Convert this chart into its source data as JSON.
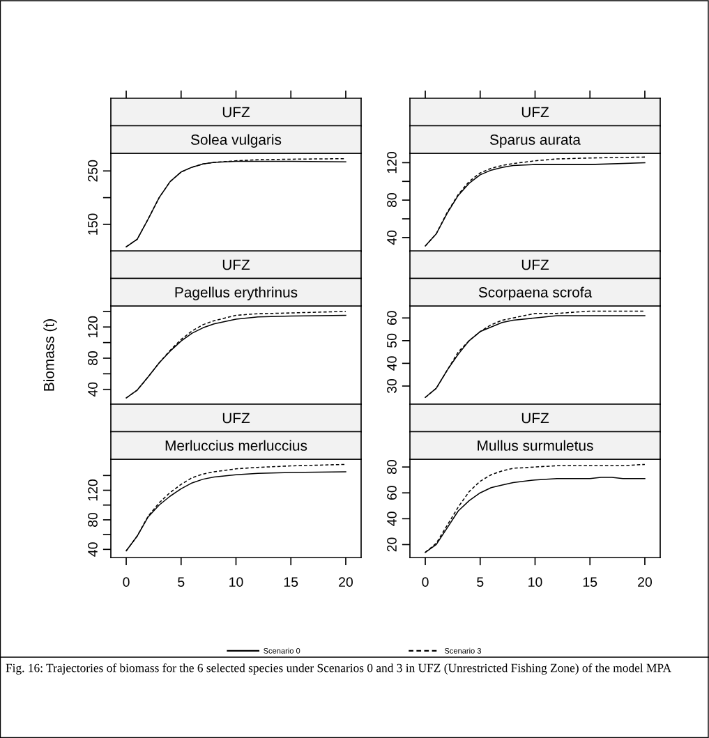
{
  "chart_data": [
    {
      "type": "line",
      "title": "UFZ",
      "subtitle": "Solea vulgaris",
      "x": [
        0,
        1,
        2,
        3,
        4,
        5,
        6,
        7,
        8,
        10,
        12,
        15,
        20
      ],
      "xlim": [
        -1.4,
        21.4
      ],
      "xticks": [
        0,
        5,
        10,
        15,
        20
      ],
      "ylim": [
        99,
        283
      ],
      "yticks": [
        150,
        {
          "value": 200,
          "label": null
        },
        250
      ],
      "tick_labels": "y",
      "series": [
        {
          "color": "#000000",
          "line_style": "solid",
          "values": [
            108,
            122,
            160,
            200,
            230,
            248,
            257,
            263,
            266,
            268,
            268,
            268,
            267
          ]
        },
        {
          "color": "#000000",
          "line_style": "dashed",
          "values": [
            108,
            122,
            160,
            200,
            230,
            248,
            257,
            263,
            266,
            269,
            271,
            272,
            273
          ]
        }
      ]
    },
    {
      "type": "line",
      "title": "UFZ",
      "subtitle": "Sparus aurata",
      "x": [
        0,
        1,
        2,
        3,
        4,
        5,
        6,
        7,
        8,
        10,
        12,
        15,
        20
      ],
      "xlim": [
        -1.4,
        21.4
      ],
      "xticks": [
        0,
        5,
        10,
        15,
        20
      ],
      "ylim": [
        25,
        130
      ],
      "yticks": [
        40,
        {
          "value": 60,
          "label": null
        },
        80,
        {
          "value": 100,
          "label": null
        },
        120
      ],
      "tick_labels": "y",
      "series": [
        {
          "color": "#000000",
          "line_style": "solid",
          "values": [
            31,
            44,
            66,
            85,
            98,
            107,
            112,
            115,
            117,
            118,
            118,
            118,
            120
          ]
        },
        {
          "color": "#000000",
          "line_style": "dashed",
          "values": [
            31,
            44,
            67,
            86,
            100,
            109,
            114,
            117,
            119,
            122,
            124,
            125,
            126
          ]
        }
      ]
    },
    {
      "type": "line",
      "title": "UFZ",
      "subtitle": "Pagellus erythrinus",
      "ylabel": "Biomass (t)",
      "x": [
        0,
        1,
        2,
        3,
        4,
        5,
        6,
        7,
        8,
        10,
        12,
        15,
        20
      ],
      "xlim": [
        -1.4,
        21.4
      ],
      "xticks": [
        0,
        5,
        10,
        15,
        20
      ],
      "ylim": [
        21,
        147
      ],
      "yticks": [
        40,
        {
          "value": 60,
          "label": null
        },
        80,
        {
          "value": 100,
          "label": null
        },
        120,
        {
          "value": 140,
          "label": null
        }
      ],
      "tick_labels": "y",
      "series": [
        {
          "color": "#000000",
          "line_style": "solid",
          "values": [
            29,
            39,
            56,
            74,
            89,
            102,
            112,
            119,
            124,
            130,
            133,
            134,
            135
          ]
        },
        {
          "color": "#000000",
          "line_style": "dashed",
          "values": [
            29,
            39,
            56,
            74,
            90,
            104,
            115,
            123,
            128,
            135,
            137,
            138,
            140
          ]
        }
      ]
    },
    {
      "type": "line",
      "title": "UFZ",
      "subtitle": "Scorpaena scrofa",
      "x": [
        0,
        1,
        2,
        3,
        4,
        5,
        6,
        7,
        8,
        10,
        12,
        15,
        20
      ],
      "xlim": [
        -1.4,
        21.4
      ],
      "xticks": [
        0,
        5,
        10,
        15,
        20
      ],
      "ylim": [
        22,
        65.3
      ],
      "yticks": [
        30,
        40,
        50,
        60
      ],
      "tick_labels": "y",
      "series": [
        {
          "color": "#000000",
          "line_style": "solid",
          "values": [
            25,
            29,
            37,
            44,
            50,
            54,
            56,
            58,
            59,
            60,
            61,
            61,
            61
          ]
        },
        {
          "color": "#000000",
          "line_style": "dashed",
          "values": [
            25,
            29,
            37,
            45,
            50,
            54,
            57,
            59,
            60,
            62,
            62,
            63,
            63
          ]
        }
      ]
    },
    {
      "type": "line",
      "title": "UFZ",
      "subtitle": "Merluccius merluccius",
      "x": [
        0,
        1,
        2,
        3,
        4,
        5,
        6,
        7,
        8,
        10,
        12,
        15,
        20
      ],
      "xlim": [
        -1.4,
        21.4
      ],
      "xticks": [
        0,
        5,
        10,
        15,
        20
      ],
      "ylim": [
        29,
        162
      ],
      "yticks": [
        40,
        {
          "value": 60,
          "label": null
        },
        80,
        {
          "value": 100,
          "label": null
        },
        120,
        {
          "value": 140,
          "label": null
        }
      ],
      "series": [
        {
          "color": "#000000",
          "line_style": "solid",
          "values": [
            38,
            58,
            84,
            100,
            112,
            122,
            130,
            135,
            138,
            141,
            143,
            144,
            145
          ]
        },
        {
          "color": "#000000",
          "line_style": "dashed",
          "values": [
            38,
            58,
            85,
            103,
            117,
            128,
            137,
            142,
            145,
            149,
            151,
            153,
            155
          ]
        }
      ]
    },
    {
      "type": "line",
      "title": "UFZ",
      "subtitle": "Mullus surmuletus",
      "x": [
        0,
        1,
        2,
        3,
        4,
        5,
        6,
        7,
        8,
        10,
        12,
        15,
        16,
        17,
        18,
        20
      ],
      "xlim": [
        -1.4,
        21.4
      ],
      "xticks": [
        0,
        5,
        10,
        15,
        20
      ],
      "ylim": [
        10,
        86
      ],
      "yticks": [
        20,
        40,
        60,
        80
      ],
      "legend": "bottom",
      "annotations": [
        "Fig. 16: Trajectories of biomass for the 6 selected species under Scenarios 0 and 3 in UFZ (Unrestricted Fishing Zone) of the model MPA"
      ],
      "series": [
        {
          "name": "Scenario 0",
          "color": "#000000",
          "line_style": "solid",
          "values": [
            14,
            20,
            33,
            46,
            54,
            60,
            64,
            66,
            68,
            70,
            71,
            71,
            72,
            72,
            71,
            71
          ]
        },
        {
          "name": "Scenario 3",
          "color": "#000000",
          "line_style": "dashed",
          "values": [
            14,
            21,
            35,
            49,
            61,
            69,
            74,
            77,
            79,
            80,
            81,
            81,
            81,
            81,
            81,
            82
          ]
        }
      ]
    }
  ]
}
